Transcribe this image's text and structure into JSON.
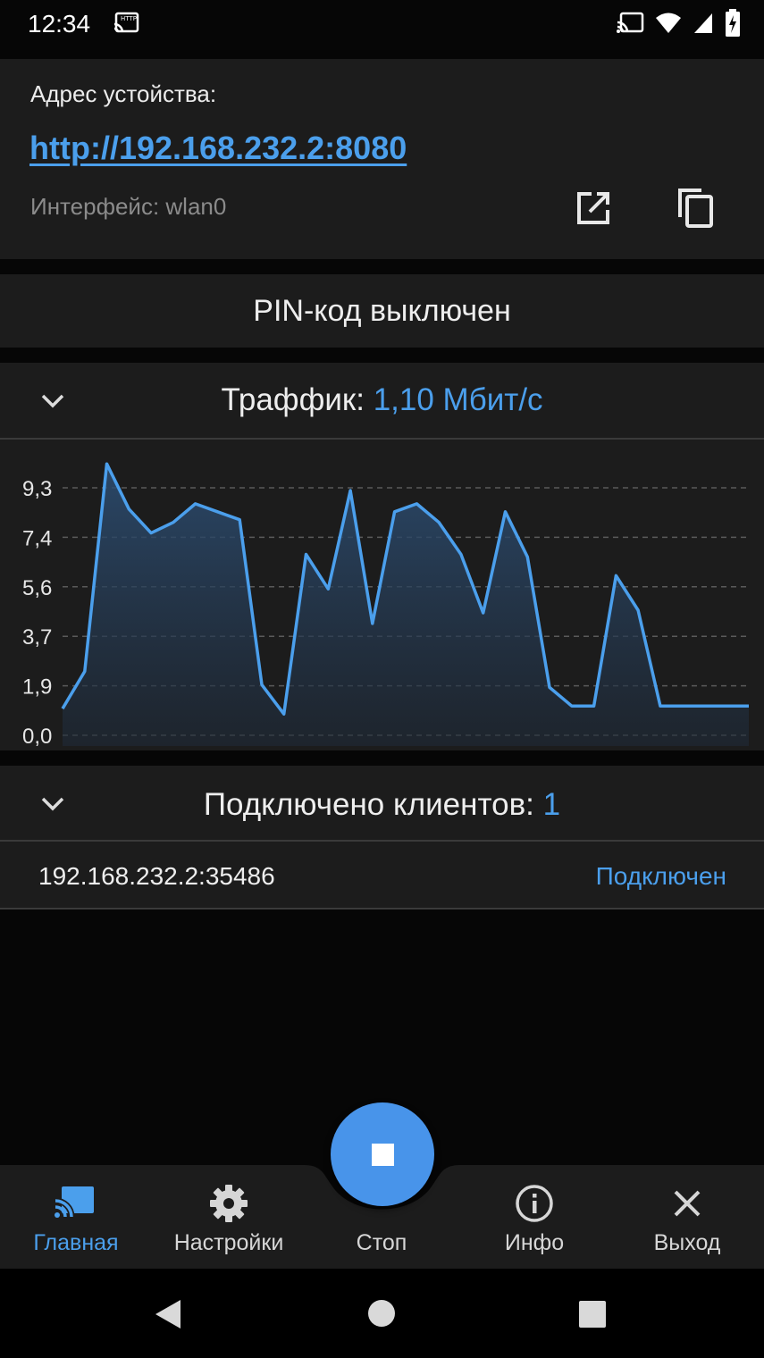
{
  "status_bar": {
    "time": "12:34",
    "icons": [
      "http-cast-icon",
      "cast-icon",
      "wifi-icon",
      "signal-icon",
      "battery-charging-icon"
    ]
  },
  "address_card": {
    "label": "Адрес устойства:",
    "url": "http://192.168.232.2:8080",
    "interface": "Интерфейс: wlan0",
    "icons": [
      "open-external-icon",
      "copy-icon"
    ]
  },
  "pin": {
    "text": "PIN-код выключен"
  },
  "traffic": {
    "title": "Траффик:",
    "value": "1,10 Мбит/с"
  },
  "chart_data": {
    "type": "area",
    "title": "",
    "xlabel": "",
    "ylabel": "",
    "ylim": [
      0,
      9.3
    ],
    "yticks": [
      "0,0",
      "1,9",
      "3,7",
      "5,6",
      "7,4",
      "9,3"
    ],
    "grid": true,
    "series": [
      {
        "values": [
          1.0,
          2.4,
          10.2,
          8.5,
          7.6,
          8.0,
          8.7,
          8.4,
          8.1,
          1.9,
          0.8,
          6.8,
          5.5,
          9.2,
          4.2,
          8.4,
          8.7,
          8.0,
          6.8,
          4.6,
          8.4,
          6.7,
          1.8,
          1.1,
          1.1,
          6.0,
          4.7,
          1.1,
          1.1,
          1.1,
          1.1,
          1.1
        ],
        "color": "#4b9fec"
      }
    ]
  },
  "clients": {
    "title": "Подключено клиентов:",
    "count": "1",
    "list": [
      {
        "address": "192.168.232.2:35486",
        "status": "Подключен"
      }
    ]
  },
  "bottom_nav": {
    "items": [
      {
        "label": "Главная",
        "icon": "cast-screen-icon",
        "active": true
      },
      {
        "label": "Настройки",
        "icon": "gear-icon",
        "active": false
      },
      {
        "label": "Стоп",
        "icon": "stop-icon",
        "active": false
      },
      {
        "label": "Инфо",
        "icon": "info-icon",
        "active": false
      },
      {
        "label": "Выход",
        "icon": "close-icon",
        "active": false
      }
    ]
  },
  "colors": {
    "accent": "#4b9fec",
    "card_bg": "#1c1c1c",
    "page_bg": "#060606"
  }
}
